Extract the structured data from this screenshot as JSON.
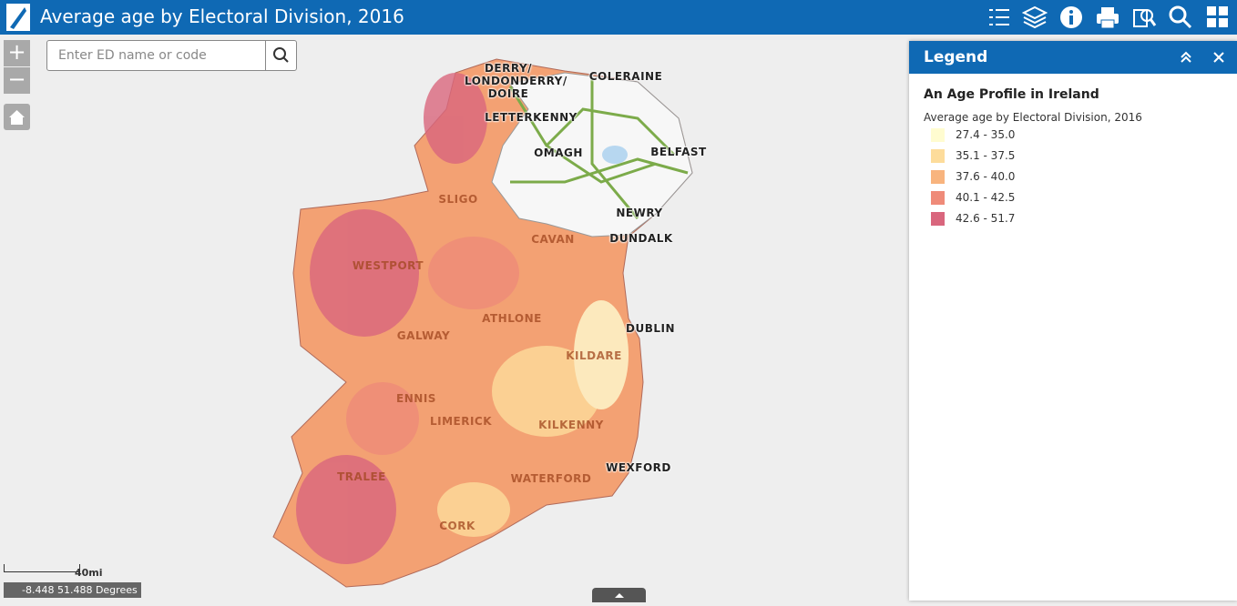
{
  "header": {
    "title": "Average age by Electoral Division, 2016"
  },
  "search": {
    "placeholder": "Enter ED name or code"
  },
  "legend": {
    "title": "Legend",
    "layer_title": "An Age Profile in Ireland",
    "subtitle": "Average age by Electoral Division, 2016",
    "items": [
      {
        "label": "27.4 - 35.0",
        "color": "#fffcd0"
      },
      {
        "label": "35.1 - 37.5",
        "color": "#fddc9b"
      },
      {
        "label": "37.6 - 40.0",
        "color": "#f8b47e"
      },
      {
        "label": "40.1 - 42.5",
        "color": "#ef8b79"
      },
      {
        "label": "42.6 - 51.7",
        "color": "#d9667d"
      }
    ]
  },
  "map_labels": [
    "DERRY/ LONDONDERRY/ DOIRE",
    "COLERAINE",
    "LETTERKENNY",
    "OMAGH",
    "BELFAST",
    "SLIGO",
    "NEWRY",
    "CAVAN",
    "DUNDALK",
    "WESTPORT",
    "ATHLONE",
    "DUBLIN",
    "GALWAY",
    "KILDARE",
    "ENNIS",
    "LIMERICK",
    "KILKENNY",
    "WEXFORD",
    "TRALEE",
    "WATERFORD",
    "CORK"
  ],
  "scale": {
    "label": "40mi"
  },
  "coordinates": {
    "label": "-8.448 51.488 Degrees"
  }
}
